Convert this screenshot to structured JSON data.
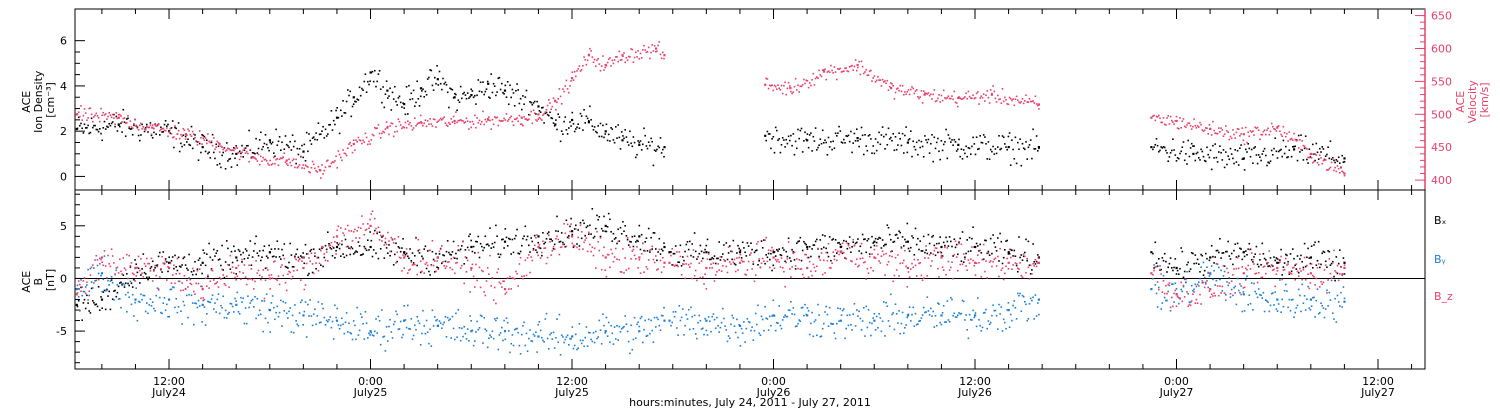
{
  "figure": {
    "xaxis_title": "hours:minutes, July 24, 2011 - July 27, 2011",
    "x_ticks": [
      {
        "hours": 12,
        "time": "12:00",
        "date": "July24"
      },
      {
        "hours": 24,
        "time": "0:00",
        "date": "July25"
      },
      {
        "hours": 36,
        "time": "12:00",
        "date": "July25"
      },
      {
        "hours": 48,
        "time": "0:00",
        "date": "July26"
      },
      {
        "hours": 60,
        "time": "12:00",
        "date": "July26"
      },
      {
        "hours": 72,
        "time": "0:00",
        "date": "July27"
      },
      {
        "hours": 84,
        "time": "12:00",
        "date": "July27"
      }
    ],
    "xlim_hours": [
      6.4,
      86.8
    ],
    "colors": {
      "black": "#000000",
      "red": "#e8406a",
      "blue": "#1a7fd6"
    }
  },
  "chart_data": [
    {
      "type": "scatter",
      "panel": "top",
      "left_axis": {
        "label_lines": [
          "ACE",
          "Ion Density",
          "[cm⁻³]"
        ],
        "ticks": [
          "0",
          "2",
          "4",
          "6"
        ],
        "ylim": [
          -0.6,
          7.4
        ]
      },
      "right_axis": {
        "label_lines": [
          "ACE",
          "Velocity",
          "[km/s]"
        ],
        "ticks": [
          "400",
          "450",
          "500",
          "550",
          "600",
          "650"
        ],
        "ylim": [
          385,
          660
        ]
      },
      "data_gaps_hours": [
        [
          41.5,
          47.5
        ],
        [
          63.8,
          70.5
        ]
      ],
      "series": [
        {
          "name": "Ion Density",
          "color": "#000000",
          "axis": "left",
          "x_hours": [
            6.5,
            9,
            12,
            14,
            16,
            18,
            20,
            22,
            23,
            24,
            25,
            26,
            27,
            28,
            29,
            30,
            31,
            32,
            34,
            35,
            36,
            37,
            38,
            39,
            40,
            41.5,
            47.5,
            50,
            53,
            56,
            59,
            62,
            63.8,
            70.5,
            73,
            76,
            79,
            82
          ],
          "y": [
            2.1,
            2.3,
            2.0,
            1.3,
            1.0,
            1.6,
            1.1,
            2.6,
            3.5,
            4.6,
            3.8,
            3.2,
            3.9,
            4.3,
            3.5,
            3.6,
            4.1,
            3.8,
            3.1,
            2.3,
            2.5,
            2.4,
            2.0,
            1.6,
            1.4,
            1.3,
            1.8,
            1.6,
            1.7,
            1.5,
            1.4,
            1.3,
            1.3,
            1.3,
            1.0,
            0.8,
            1.2,
            0.8
          ]
        },
        {
          "name": "Velocity",
          "color": "#e8406a",
          "axis": "right",
          "x_hours": [
            6.5,
            9,
            11,
            13,
            15,
            17,
            19,
            21,
            23,
            25,
            27,
            29,
            31,
            33,
            34,
            35,
            36,
            37,
            38,
            39,
            41,
            41.5,
            47.5,
            49,
            51,
            53,
            55,
            57,
            59,
            61,
            63.8,
            70.5,
            72,
            74,
            76,
            78,
            80,
            82
          ],
          "y": [
            500,
            495,
            480,
            470,
            455,
            435,
            430,
            415,
            455,
            480,
            488,
            490,
            492,
            495,
            500,
            520,
            555,
            590,
            575,
            590,
            600,
            590,
            545,
            540,
            565,
            575,
            540,
            530,
            525,
            530,
            515,
            495,
            490,
            478,
            470,
            480,
            440,
            410
          ]
        }
      ]
    },
    {
      "type": "scatter",
      "panel": "bottom",
      "left_axis": {
        "label_lines": [
          "ACE",
          "B",
          "[nT]"
        ],
        "ticks": [
          "-5",
          "0",
          "5"
        ],
        "ylim": [
          -8.6,
          8.4
        ]
      },
      "legend": [
        {
          "name": "Bₓ",
          "color": "#000000"
        },
        {
          "name": "Bᵧ",
          "color": "#1a7fd6"
        },
        {
          "name": "B_z",
          "color": "#e8406a"
        }
      ],
      "data_gaps_hours": [
        [
          41.5,
          41.8
        ],
        [
          63.8,
          70.5
        ]
      ],
      "series": [
        {
          "name": "Bx",
          "color": "#000000",
          "x_hours": [
            6.5,
            8,
            10,
            12,
            14,
            16,
            18,
            20,
            22,
            24,
            26,
            28,
            30,
            32,
            34,
            36,
            38,
            40,
            41.5,
            41.8,
            44,
            46,
            48,
            50,
            52,
            54,
            56,
            58,
            60,
            62,
            63.8,
            70.5,
            72,
            74,
            76,
            78,
            80,
            82
          ],
          "y": [
            -2.5,
            -2.0,
            1.0,
            1.5,
            1.5,
            2.0,
            2.5,
            2.0,
            3.0,
            3.0,
            2.5,
            2.0,
            3.0,
            3.5,
            4.0,
            4.5,
            5.0,
            4.0,
            3.0,
            2.5,
            2.5,
            2.5,
            2.5,
            3.0,
            3.0,
            3.5,
            3.5,
            3.0,
            3.0,
            2.5,
            2.0,
            2.5,
            1.0,
            2.0,
            2.5,
            1.5,
            2.0,
            1.5
          ]
        },
        {
          "name": "By",
          "color": "#1a7fd6",
          "x_hours": [
            6.5,
            8,
            10,
            12,
            14,
            16,
            18,
            20,
            22,
            24,
            26,
            28,
            30,
            32,
            34,
            36,
            38,
            40,
            41.5,
            41.8,
            44,
            46,
            48,
            50,
            52,
            54,
            56,
            58,
            60,
            62,
            63.8,
            70.5,
            72,
            74,
            76,
            78,
            80,
            82
          ],
          "y": [
            -1.0,
            0.5,
            -2.0,
            -2.0,
            -2.5,
            -2.5,
            -3.0,
            -3.5,
            -4.0,
            -5.0,
            -4.0,
            -4.5,
            -5.0,
            -5.0,
            -5.5,
            -5.5,
            -5.0,
            -5.0,
            -4.0,
            -4.0,
            -4.0,
            -4.5,
            -3.5,
            -3.5,
            -4.0,
            -4.0,
            -3.5,
            -3.5,
            -3.5,
            -3.0,
            -2.0,
            -1.0,
            -1.5,
            0.5,
            -1.5,
            -2.0,
            -2.0,
            -2.2
          ]
        },
        {
          "name": "Bz",
          "color": "#e8406a",
          "x_hours": [
            6.5,
            8,
            10,
            12,
            14,
            16,
            18,
            20,
            22,
            24,
            26,
            28,
            30,
            32,
            34,
            36,
            38,
            40,
            41.5,
            41.8,
            44,
            46,
            48,
            50,
            52,
            54,
            56,
            58,
            60,
            62,
            63.8,
            70.5,
            72,
            74,
            76,
            78,
            80,
            82
          ],
          "y": [
            -1.5,
            2.0,
            1.0,
            1.0,
            -1.0,
            1.0,
            0.0,
            1.0,
            4.0,
            5.0,
            2.0,
            2.0,
            1.0,
            -1.0,
            3.0,
            4.0,
            2.0,
            2.0,
            1.5,
            1.5,
            1.0,
            1.5,
            2.0,
            1.0,
            2.5,
            2.0,
            1.0,
            2.0,
            1.5,
            1.5,
            1.5,
            0.5,
            -1.5,
            -1.0,
            0.5,
            1.0,
            0.5,
            1.0
          ]
        }
      ]
    }
  ]
}
